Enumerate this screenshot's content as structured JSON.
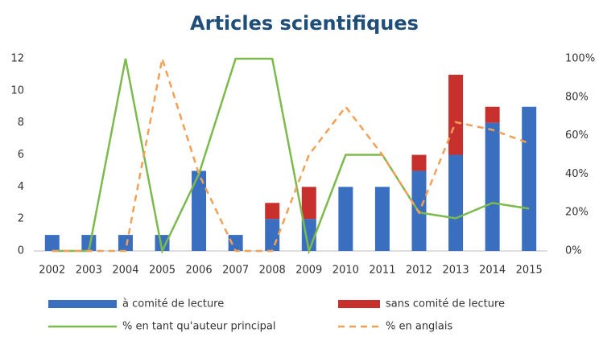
{
  "chart_data": {
    "type": "bar",
    "title": "Articles scientifiques",
    "categories": [
      "2002",
      "2003",
      "2004",
      "2005",
      "2006",
      "2007",
      "2008",
      "2009",
      "2010",
      "2011",
      "2012",
      "2013",
      "2014",
      "2015"
    ],
    "series": [
      {
        "name": "à comité de lecture",
        "color": "#3a6fbf",
        "values": [
          1,
          1,
          1,
          1,
          5,
          1,
          2,
          2,
          4,
          4,
          5,
          6,
          8,
          9
        ]
      },
      {
        "name": "sans comité de lecture",
        "color": "#c8302e",
        "values": [
          0,
          0,
          0,
          0,
          0,
          0,
          1,
          2,
          0,
          0,
          1,
          5,
          1,
          0
        ]
      },
      {
        "name": "% en tant qu'auteur principal",
        "color": "#7dba4c",
        "type": "line",
        "axis": "y2",
        "values": [
          0,
          0,
          100,
          0,
          40,
          100,
          100,
          0,
          50,
          50,
          20,
          17,
          25,
          22
        ]
      },
      {
        "name": "% en anglais",
        "color": "#f3a056",
        "type": "line",
        "dashed": true,
        "axis": "y2",
        "values": [
          0,
          0,
          0,
          100,
          40,
          0,
          0,
          50,
          75,
          50,
          20,
          67,
          63,
          56
        ]
      }
    ],
    "stacked": true,
    "ylim": [
      0,
      12
    ],
    "yticks": [
      0,
      2,
      4,
      6,
      8,
      10,
      12
    ],
    "y2lim": [
      0,
      100
    ],
    "y2ticks": [
      {
        "value": 0,
        "label": "0%"
      },
      {
        "value": 20,
        "label": "20%"
      },
      {
        "value": 40,
        "label": "40%"
      },
      {
        "value": 60,
        "label": "60%"
      },
      {
        "value": 80,
        "label": "80%"
      },
      {
        "value": 100,
        "label": "100%"
      }
    ],
    "grid": false,
    "legend": "bottom"
  }
}
